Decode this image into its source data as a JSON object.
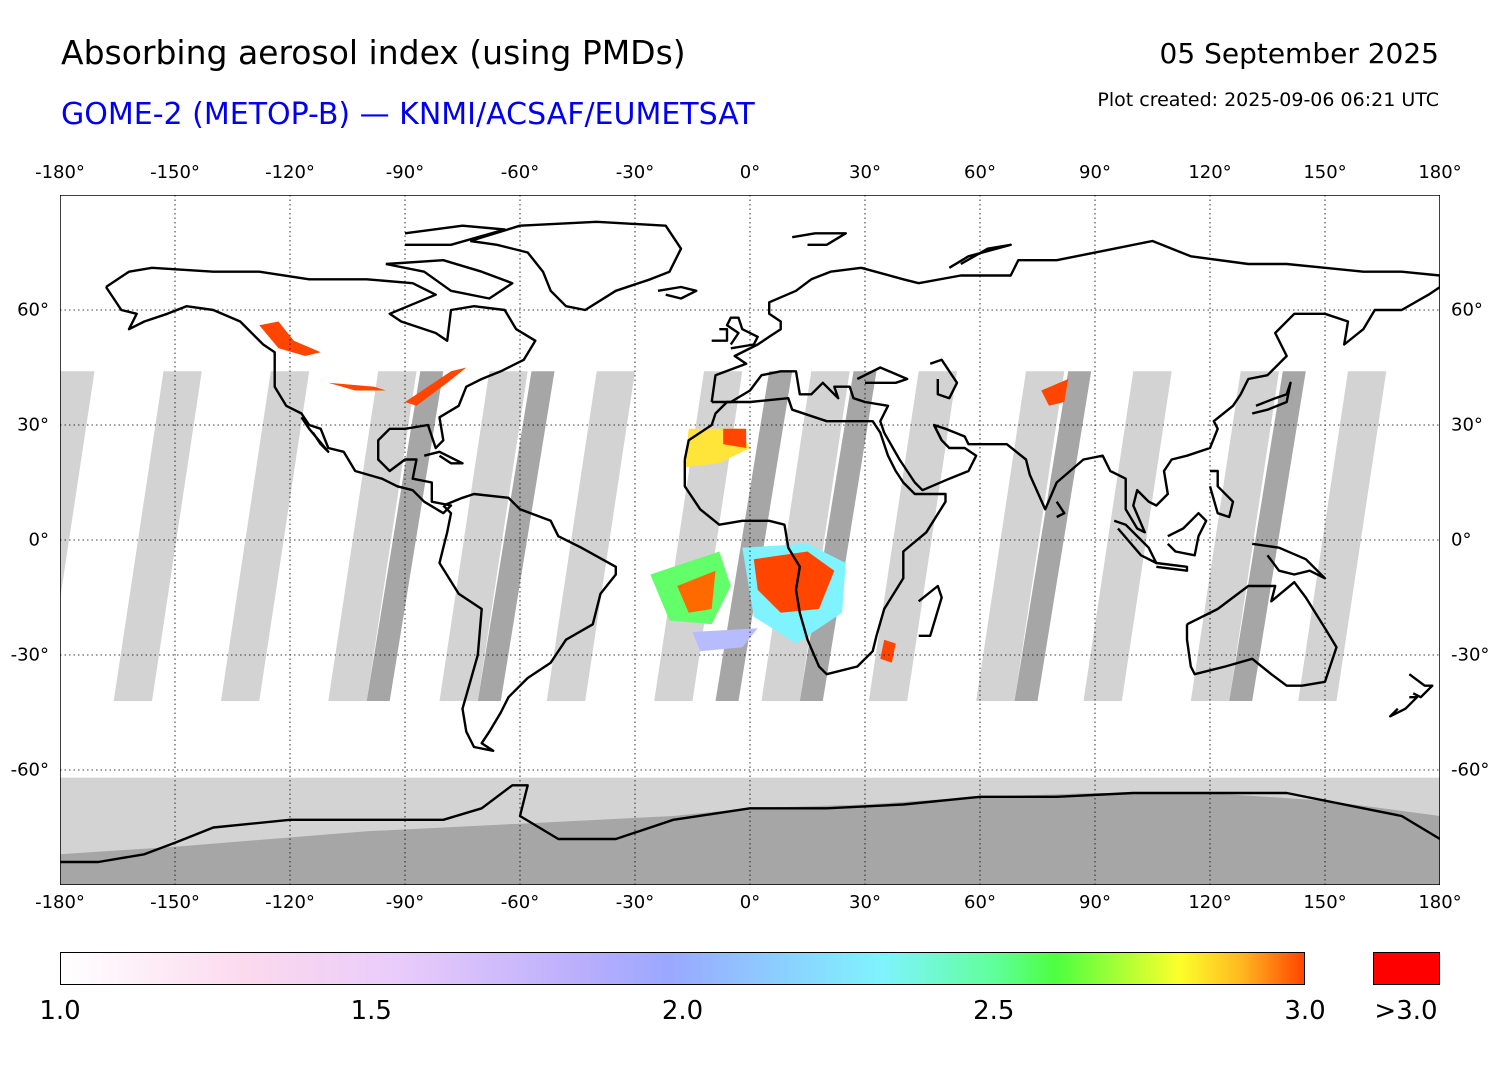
{
  "header": {
    "title": "Absorbing aerosol index (using PMDs)",
    "subtitle": "GOME-2 (METOP-B) — KNMI/ACSAF/EUMETSAT",
    "date": "05 September 2025",
    "plot_created": "Plot created: 2025-09-06 06:21 UTC"
  },
  "map": {
    "projection": "equirectangular",
    "lon_range": [
      -180,
      180
    ],
    "lat_range": [
      -90,
      90
    ],
    "lon_ticks": [
      {
        "value": -180,
        "label": "-180°"
      },
      {
        "value": -150,
        "label": "-150°"
      },
      {
        "value": -120,
        "label": "-120°"
      },
      {
        "value": -90,
        "label": "-90°"
      },
      {
        "value": -60,
        "label": "-60°"
      },
      {
        "value": -30,
        "label": "-30°"
      },
      {
        "value": 0,
        "label": "0°"
      },
      {
        "value": 30,
        "label": "30°"
      },
      {
        "value": 60,
        "label": "60°"
      },
      {
        "value": 90,
        "label": "90°"
      },
      {
        "value": 120,
        "label": "120°"
      },
      {
        "value": 150,
        "label": "150°"
      },
      {
        "value": 180,
        "label": "180°"
      }
    ],
    "lat_ticks": [
      {
        "value": 60,
        "label": "60°"
      },
      {
        "value": 30,
        "label": "30°"
      },
      {
        "value": 0,
        "label": "0°"
      },
      {
        "value": -30,
        "label": "-30°"
      },
      {
        "value": -60,
        "label": "-60°"
      }
    ],
    "grid": true,
    "colors": {
      "coastline": "#000000",
      "gap": "#d3d3d3",
      "overlap_gap": "#a6a6a6",
      "high_aai": "#ff4500"
    }
  },
  "colorbar": {
    "tick_labels": [
      {
        "value": 1.0,
        "label": "1.0"
      },
      {
        "value": 1.5,
        "label": "1.5"
      },
      {
        "value": 2.0,
        "label": "2.0"
      },
      {
        "value": 2.5,
        "label": "2.5"
      },
      {
        "value": 3.0,
        "label": "3.0"
      }
    ],
    "range": [
      1.0,
      3.0
    ],
    "overflow_label": ">3.0",
    "overflow_color": "#ff0000"
  }
}
